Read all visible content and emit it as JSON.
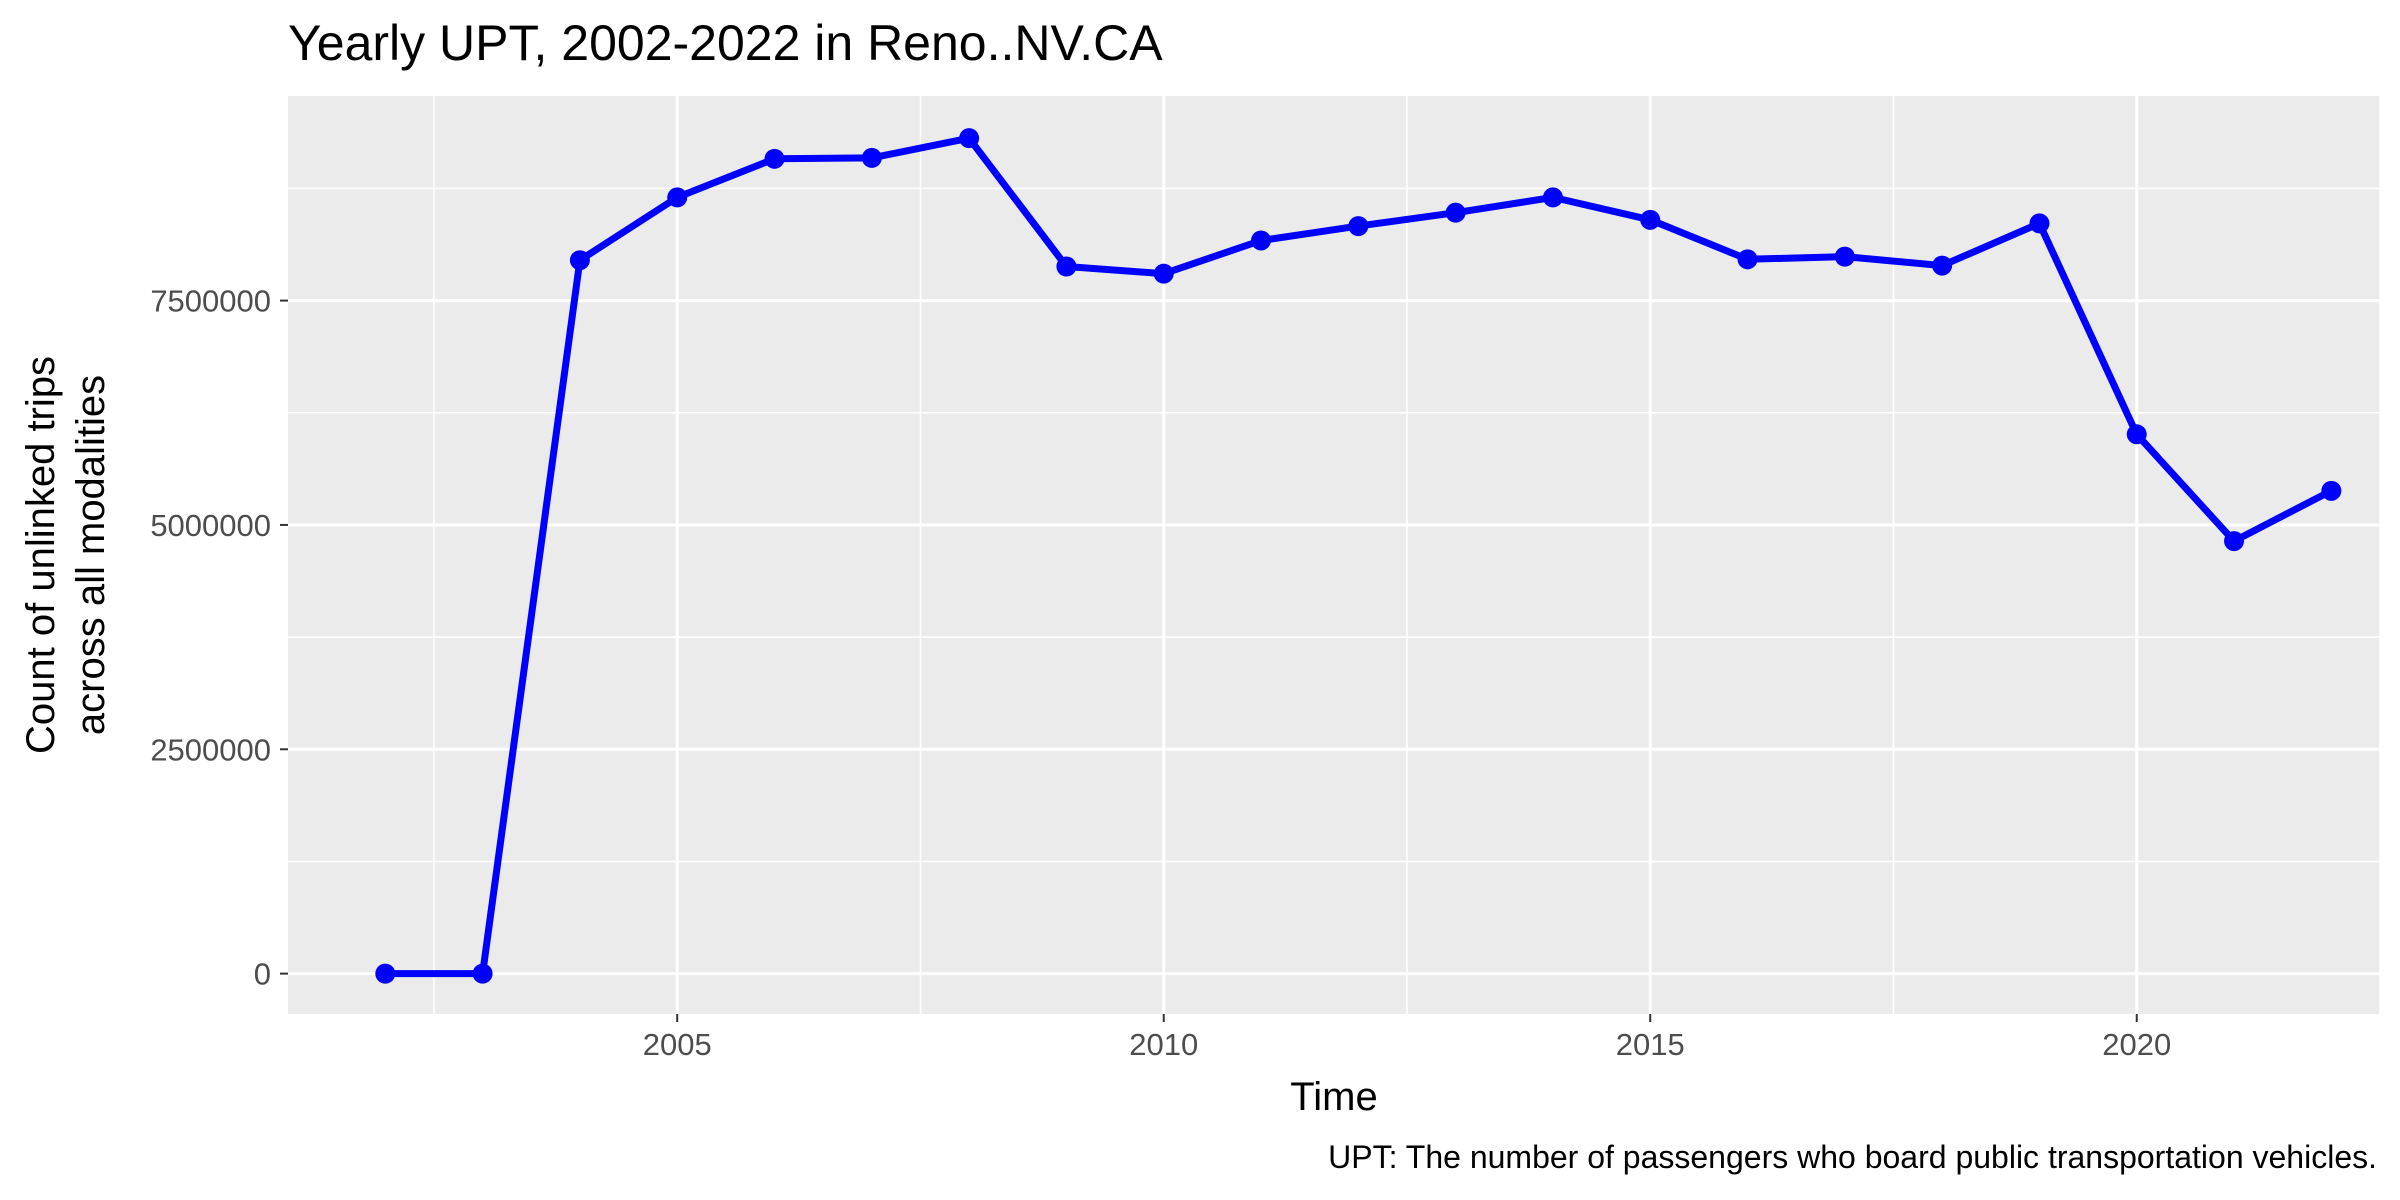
{
  "chart_data": {
    "type": "line",
    "title": "Yearly UPT, 2002-2022 in Reno..NV.CA",
    "xlabel": "Time",
    "ylabel_lines": [
      "Count of unlinked trips",
      "across all modalities"
    ],
    "caption": "UPT: The number of passengers who board public transportation vehicles.",
    "x_ticks": [
      "2005",
      "2010",
      "2015",
      "2020"
    ],
    "y_ticks": [
      "0",
      "2500000",
      "5000000",
      "7500000"
    ],
    "xlim": [
      2001,
      2022.5
    ],
    "ylim": [
      -450000,
      9780000
    ],
    "grid": true,
    "legend": "none",
    "colors": {
      "line": "#0000FF",
      "panel": "#EBEBEB",
      "grid": "#FFFFFF",
      "tick_text": "#4D4D4D",
      "tick_mark": "#333333"
    },
    "x": [
      2002,
      2003,
      2004,
      2005,
      2006,
      2007,
      2008,
      2009,
      2010,
      2011,
      2012,
      2013,
      2014,
      2015,
      2016,
      2017,
      2018,
      2019,
      2020,
      2021,
      2022
    ],
    "values": [
      0,
      0,
      7950000,
      8650000,
      9080000,
      9090000,
      9310000,
      7880000,
      7800000,
      8170000,
      8330000,
      8480000,
      8650000,
      8400000,
      7960000,
      7990000,
      7890000,
      8360000,
      6010000,
      4820000,
      5380000
    ]
  }
}
